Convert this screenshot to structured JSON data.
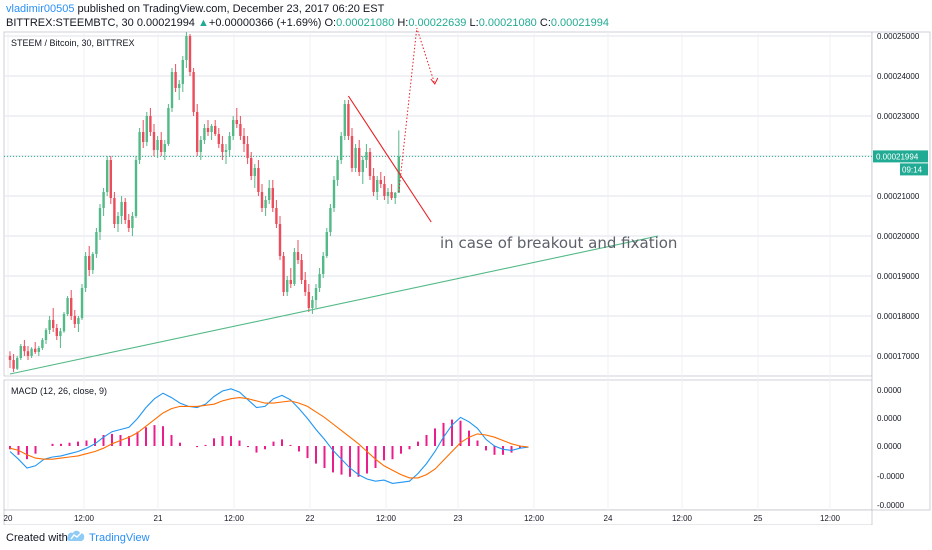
{
  "header": {
    "author": "vladimir00505",
    "published": "published on TradingView.com, December 23, 2017 06:20 EST",
    "ticker": "BITTREX:STEEMBTC, 30",
    "last": "0.00021994",
    "change_arrow": "▲",
    "change": "+0.00000366 (+1.69%)",
    "o_label": "O:",
    "o_value": "0.00021080",
    "h_label": "H:",
    "h_value": "0.00022639",
    "l_label": "L:",
    "l_value": "0.00021080",
    "c_label": "C:",
    "c_value": "0.00021994"
  },
  "colors": {
    "up": "#53b987",
    "down": "#eb4d5c",
    "price_line": "#22ab94",
    "trendline_green": "#53b987",
    "trendline_red": "#e91e23",
    "macd": "#2196f3",
    "signal": "#ff6d00",
    "hist": "#e91e8c",
    "accent_link": "#2a8ff7"
  },
  "footer": {
    "created": "Created with",
    "brand": "TradingView",
    "logo_icon": "tradingview-cloud-icon"
  },
  "chart_data": [
    {
      "type": "candlestick",
      "title": "STEEM / Bitcoin, 30, BITTREX",
      "ylim": [
        0.000165,
        0.000251
      ],
      "y_ticks": [
        "0.00017000",
        "0.00018000",
        "0.00019000",
        "0.00020000",
        "0.00021000",
        "0.00022000",
        "0.00023000",
        "0.00024000",
        "0.00025000"
      ],
      "x_ticks": [
        "20",
        "12:00",
        "21",
        "12:00",
        "22",
        "12:00",
        "23",
        "12:00",
        "24",
        "12:00",
        "25",
        "12:00"
      ],
      "last_price_label": "0.00021994",
      "countdown_label": "09:14",
      "annotation": "in case of breakout and fixation",
      "grid": true,
      "candles": [
        [
          0.00017,
          0.0001712,
          0.000167,
          0.000169
        ],
        [
          0.000169,
          0.0001705,
          0.000166,
          0.0001668
        ],
        [
          0.0001668,
          0.00017,
          0.0001665,
          0.0001695
        ],
        [
          0.0001695,
          0.000173,
          0.000169,
          0.0001725
        ],
        [
          0.0001725,
          0.000174,
          0.00017,
          0.0001712
        ],
        [
          0.0001712,
          0.0001725,
          0.000169,
          0.00017
        ],
        [
          0.00017,
          0.0001722,
          0.0001695,
          0.0001718
        ],
        [
          0.0001718,
          0.0001735,
          0.0001705,
          0.000171
        ],
        [
          0.000171,
          0.0001725,
          0.00017,
          0.000172
        ],
        [
          0.000172,
          0.0001745,
          0.0001715,
          0.000174
        ],
        [
          0.000174,
          0.000177,
          0.000173,
          0.0001765
        ],
        [
          0.0001765,
          0.00018,
          0.0001755,
          0.000179
        ],
        [
          0.000179,
          0.000182,
          0.000176,
          0.000177
        ],
        [
          0.000177,
          0.000178,
          0.000174,
          0.000175
        ],
        [
          0.000175,
          0.000177,
          0.000172,
          0.0001762
        ],
        [
          0.0001762,
          0.000181,
          0.0001758,
          0.0001805
        ],
        [
          0.0001805,
          0.000185,
          0.00018,
          0.0001845
        ],
        [
          0.0001845,
          0.0001865,
          0.000179,
          0.00018
        ],
        [
          0.00018,
          0.0001815,
          0.000177,
          0.000178
        ],
        [
          0.000178,
          0.00018,
          0.000176,
          0.0001795
        ],
        [
          0.0001795,
          0.000188,
          0.000179,
          0.000187
        ],
        [
          0.000187,
          0.000196,
          0.000186,
          0.000195
        ],
        [
          0.000195,
          0.0001975,
          0.00019,
          0.0001915
        ],
        [
          0.0001915,
          0.000196,
          0.0001905,
          0.0001955
        ],
        [
          0.0001955,
          0.000202,
          0.0001945,
          0.000201
        ],
        [
          0.000201,
          0.000208,
          0.000199,
          0.000207
        ],
        [
          0.000207,
          0.000212,
          0.000205,
          0.000211
        ],
        [
          0.000211,
          0.00022,
          0.00021,
          0.000219
        ],
        [
          0.000219,
          0.00022,
          0.000208,
          0.0002095
        ],
        [
          0.0002095,
          0.000211,
          0.000202,
          0.000203
        ],
        [
          0.000203,
          0.000206,
          0.000201,
          0.000205
        ],
        [
          0.000205,
          0.00021,
          0.000203,
          0.0002085
        ],
        [
          0.0002085,
          0.0002095,
          0.000203,
          0.000204
        ],
        [
          0.000204,
          0.0002055,
          0.000201,
          0.000202
        ],
        [
          0.000202,
          0.000206,
          0.0002,
          0.000205
        ],
        [
          0.000205,
          0.00022,
          0.0002045,
          0.000219
        ],
        [
          0.000219,
          0.000227,
          0.000218,
          0.000226
        ],
        [
          0.000226,
          0.000229,
          0.000222,
          0.0002235
        ],
        [
          0.0002235,
          0.000231,
          0.0002225,
          0.00023
        ],
        [
          0.00023,
          0.000232,
          0.000225,
          0.000226
        ],
        [
          0.000226,
          0.000228,
          0.00022,
          0.0002215
        ],
        [
          0.0002215,
          0.000225,
          0.0002195,
          0.000224
        ],
        [
          0.000224,
          0.000226,
          0.00022,
          0.000221
        ],
        [
          0.000221,
          0.000224,
          0.000219,
          0.000223
        ],
        [
          0.000223,
          0.000233,
          0.0002225,
          0.000232
        ],
        [
          0.000232,
          0.000242,
          0.000231,
          0.000241
        ],
        [
          0.000241,
          0.000243,
          0.000236,
          0.000237
        ],
        [
          0.000237,
          0.000239,
          0.000234,
          0.000238
        ],
        [
          0.000238,
          0.000245,
          0.000236,
          0.000244
        ],
        [
          0.000244,
          0.000251,
          0.000242,
          0.00025
        ],
        [
          0.00025,
          0.0002505,
          0.00024,
          0.000241
        ],
        [
          0.000241,
          0.000242,
          0.00023,
          0.000231
        ],
        [
          0.000231,
          0.000233,
          0.00022,
          0.000221
        ],
        [
          0.000221,
          0.000225,
          0.000219,
          0.000224
        ],
        [
          0.000224,
          0.000228,
          0.000223,
          0.000227
        ],
        [
          0.000227,
          0.000229,
          0.000225,
          0.000226
        ],
        [
          0.000226,
          0.000228,
          0.000224,
          0.0002275
        ],
        [
          0.0002275,
          0.000229,
          0.000225,
          0.0002255
        ],
        [
          0.0002255,
          0.000227,
          0.000222,
          0.000223
        ],
        [
          0.000223,
          0.000225,
          0.000219,
          0.000221
        ],
        [
          0.000221,
          0.000223,
          0.000218,
          0.0002215
        ],
        [
          0.0002215,
          0.000226,
          0.00022,
          0.000225
        ],
        [
          0.000225,
          0.00023,
          0.000224,
          0.000229
        ],
        [
          0.000229,
          0.000232,
          0.000227,
          0.000228
        ],
        [
          0.000228,
          0.00023,
          0.000224,
          0.000225
        ],
        [
          0.000225,
          0.000227,
          0.000221,
          0.000223
        ],
        [
          0.000223,
          0.000225,
          0.000218,
          0.0002195
        ],
        [
          0.0002195,
          0.000221,
          0.000214,
          0.000215
        ],
        [
          0.000215,
          0.000218,
          0.000212,
          0.000217
        ],
        [
          0.000217,
          0.000219,
          0.00021,
          0.000211
        ],
        [
          0.000211,
          0.000213,
          0.000206,
          0.000207
        ],
        [
          0.000207,
          0.00021,
          0.000205,
          0.000209
        ],
        [
          0.000209,
          0.000214,
          0.000208,
          0.000212
        ],
        [
          0.000212,
          0.000214,
          0.000206,
          0.000207
        ],
        [
          0.000207,
          0.000209,
          0.000202,
          0.000203
        ],
        [
          0.000203,
          0.000205,
          0.000194,
          0.000195
        ],
        [
          0.000195,
          0.000196,
          0.000185,
          0.000186
        ],
        [
          0.000186,
          0.00019,
          0.000185,
          0.000189
        ],
        [
          0.000189,
          0.000192,
          0.000187,
          0.000188
        ],
        [
          0.000188,
          0.000197,
          0.0001875,
          0.000196
        ],
        [
          0.000196,
          0.000199,
          0.000193,
          0.000194
        ],
        [
          0.000194,
          0.0001955,
          0.000188,
          0.000189
        ],
        [
          0.000189,
          0.000191,
          0.000185,
          0.000186
        ],
        [
          0.000186,
          0.000188,
          0.000181,
          0.000182
        ],
        [
          0.000182,
          0.000185,
          0.0001805,
          0.000184
        ],
        [
          0.000184,
          0.000188,
          0.000182,
          0.000187
        ],
        [
          0.000187,
          0.000192,
          0.000186,
          0.0001905
        ],
        [
          0.0001905,
          0.000196,
          0.0001895,
          0.000195
        ],
        [
          0.000195,
          0.000202,
          0.0001945,
          0.000201
        ],
        [
          0.000201,
          0.000208,
          0.0002,
          0.000207
        ],
        [
          0.000207,
          0.000215,
          0.000206,
          0.000214
        ],
        [
          0.000214,
          0.00022,
          0.0002125,
          0.000219
        ],
        [
          0.000219,
          0.000226,
          0.000218,
          0.000225
        ],
        [
          0.000225,
          0.000234,
          0.000224,
          0.000233
        ],
        [
          0.000233,
          0.000234,
          0.000224,
          0.000225
        ],
        [
          0.000225,
          0.000227,
          0.000216,
          0.000217
        ],
        [
          0.000217,
          0.000223,
          0.000216,
          0.000222
        ],
        [
          0.000222,
          0.000224,
          0.000215,
          0.000216
        ],
        [
          0.000216,
          0.00022,
          0.000213,
          0.000219
        ],
        [
          0.000219,
          0.000223,
          0.000217,
          0.000221
        ],
        [
          0.000221,
          0.000222,
          0.000214,
          0.000215
        ],
        [
          0.000215,
          0.000217,
          0.00021,
          0.000211
        ],
        [
          0.000211,
          0.000215,
          0.000209,
          0.000214
        ],
        [
          0.000214,
          0.000216,
          0.000212,
          0.000213
        ],
        [
          0.000213,
          0.000215,
          0.000209,
          0.00021
        ],
        [
          0.00021,
          0.000212,
          0.000208,
          0.000211
        ],
        [
          0.000211,
          0.000213,
          0.000209,
          0.0002095
        ],
        [
          0.0002095,
          0.000211,
          0.000208,
          0.0002108
        ],
        [
          0.0002108,
          0.0002264,
          0.0002108,
          0.0002199
        ]
      ],
      "trendlines": [
        {
          "color_key": "trendline_green",
          "from": [
            0,
            0.0001655
          ],
          "to": [
            180,
            0.0002
          ]
        },
        {
          "color_key": "trendline_red",
          "from": [
            94,
            0.000235
          ],
          "to": [
            117,
            0.0002035
          ]
        }
      ],
      "projection": {
        "points": [
          [
            108,
            0.000211
          ],
          [
            113,
            0.000252
          ],
          [
            118,
            0.000238
          ]
        ]
      }
    },
    {
      "type": "line",
      "title": "MACD (12, 26, close, 9)",
      "y_ticks": [
        "0.0000",
        "0.0000",
        "0.0000",
        "-0.0000",
        "-0.0000"
      ],
      "series": [
        {
          "color_key": "macd",
          "values": [
            -0.5,
            -1.2,
            -2.0,
            -1.8,
            -1.2,
            -1.0,
            -0.9,
            -0.7,
            -0.5,
            -0.2,
            0.2,
            0.8,
            1.3,
            1.5,
            1.7,
            2.5,
            3.5,
            4.3,
            4.8,
            4.4,
            3.9,
            3.6,
            3.5,
            3.8,
            4.5,
            5.0,
            5.2,
            4.9,
            4.2,
            3.5,
            3.6,
            4.3,
            4.6,
            4.2,
            3.4,
            2.5,
            1.5,
            0.6,
            -0.4,
            -1.2,
            -2.0,
            -2.6,
            -3.0,
            -3.2,
            -3.1,
            -3.4,
            -3.3,
            -3.2,
            -2.5,
            -1.6,
            -0.5,
            0.8,
            1.9,
            2.6,
            2.2,
            1.6,
            0.6,
            0.0,
            -0.3,
            -0.4,
            -0.2,
            -0.1
          ]
        },
        {
          "color_key": "signal",
          "values": [
            -0.2,
            -0.4,
            -0.8,
            -1.1,
            -1.2,
            -1.2,
            -1.1,
            -1.0,
            -0.9,
            -0.7,
            -0.5,
            -0.2,
            0.2,
            0.5,
            0.8,
            1.2,
            1.8,
            2.4,
            3.0,
            3.4,
            3.6,
            3.6,
            3.6,
            3.7,
            3.8,
            4.1,
            4.3,
            4.4,
            4.3,
            4.1,
            3.9,
            3.9,
            4.0,
            4.1,
            3.9,
            3.6,
            3.1,
            2.6,
            2.0,
            1.4,
            0.8,
            0.2,
            -0.5,
            -1.2,
            -1.8,
            -2.2,
            -2.6,
            -2.9,
            -2.9,
            -2.6,
            -2.1,
            -1.3,
            -0.5,
            0.3,
            0.8,
            1.1,
            1.0,
            0.8,
            0.5,
            0.2,
            0.0,
            -0.1
          ]
        }
      ],
      "hist": [
        -0.3,
        -0.8,
        -1.2,
        -0.7,
        0.0,
        0.2,
        0.2,
        0.3,
        0.4,
        0.5,
        0.7,
        1.0,
        1.1,
        1.0,
        0.9,
        1.3,
        1.7,
        1.9,
        1.8,
        1.0,
        0.3,
        0.0,
        -0.1,
        0.1,
        0.7,
        0.9,
        0.9,
        0.5,
        -0.1,
        -0.6,
        -0.3,
        0.4,
        0.6,
        0.1,
        -0.5,
        -1.1,
        -1.6,
        -2.0,
        -2.4,
        -2.6,
        -2.8,
        -2.8,
        -2.5,
        -2.0,
        -1.3,
        -1.2,
        -0.7,
        -0.3,
        0.4,
        1.0,
        1.6,
        2.1,
        2.4,
        2.3,
        1.4,
        0.5,
        -0.4,
        -0.8,
        -0.8,
        -0.6,
        -0.2,
        0.0
      ]
    }
  ]
}
